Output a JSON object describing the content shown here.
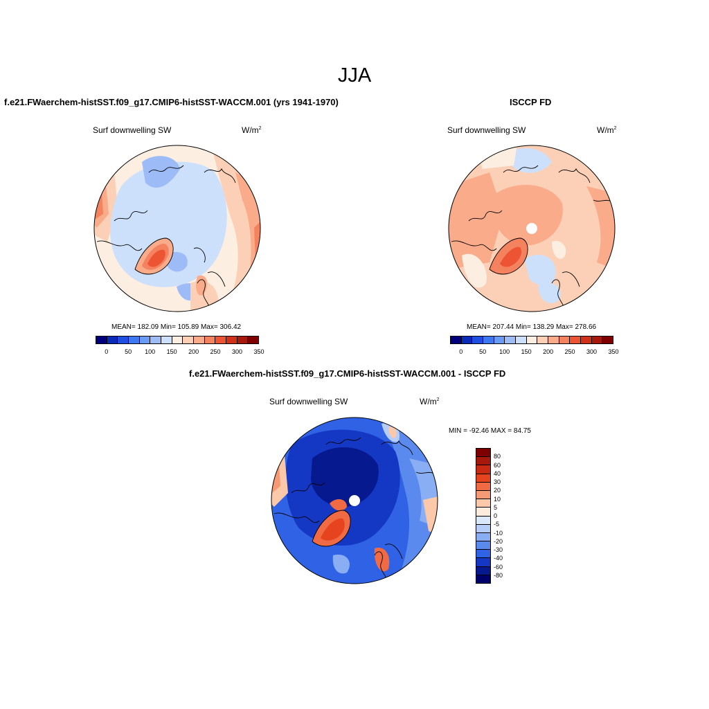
{
  "season": "JJA",
  "panels": [
    {
      "id": "model",
      "title": "f.e21.FWaerchem-histSST.f09_g17.CMIP6-histSST-WACCM.001 (yrs 1941-1970)",
      "variable": "Surf downwelling SW",
      "units": "W/m",
      "units_exp": "2",
      "stats": "MEAN= 182.09  Min= 105.89  Max= 306.42",
      "colorbar_ticks": [
        "0",
        "50",
        "100",
        "150",
        "200",
        "250",
        "300",
        "350"
      ]
    },
    {
      "id": "obs",
      "title": "ISCCP FD",
      "variable": "Surf downwelling SW",
      "units": "W/m",
      "units_exp": "2",
      "stats": "MEAN= 207.44  Min= 138.29  Max= 278.66",
      "colorbar_ticks": [
        "0",
        "50",
        "100",
        "150",
        "200",
        "250",
        "300",
        "350"
      ]
    },
    {
      "id": "diff",
      "title": "f.e21.FWaerchem-histSST.f09_g17.CMIP6-histSST-WACCM.001 - ISCCP FD",
      "variable": "Surf downwelling SW",
      "units": "W/m",
      "units_exp": "2",
      "stats": "MIN = -92.46 MAX =  84.75",
      "colorbar_ticks": [
        "80",
        "60",
        "40",
        "30",
        "20",
        "10",
        "5",
        "0",
        "-5",
        "-10",
        "-20",
        "-30",
        "-40",
        "-60",
        "-80"
      ]
    }
  ],
  "colors": {
    "abs_scale": [
      "#00007f",
      "#0a2ab8",
      "#1f4fe0",
      "#3c78f0",
      "#6a9cf5",
      "#9dbcf7",
      "#cde0fb",
      "#fdeee2",
      "#fcd0b6",
      "#f9ab8a",
      "#f5825f",
      "#ec5433",
      "#d2301a",
      "#a8190d",
      "#7f0000"
    ],
    "diff_scale": [
      "#7f0000",
      "#a8190d",
      "#c92a14",
      "#e6431f",
      "#f06b43",
      "#f69a75",
      "#fbc8aa",
      "#fdebdd",
      "#dbe8fb",
      "#b6cdf8",
      "#8aaef4",
      "#5a8aee",
      "#2f62e4",
      "#1538c4",
      "#06198f",
      "#00006a"
    ]
  }
}
